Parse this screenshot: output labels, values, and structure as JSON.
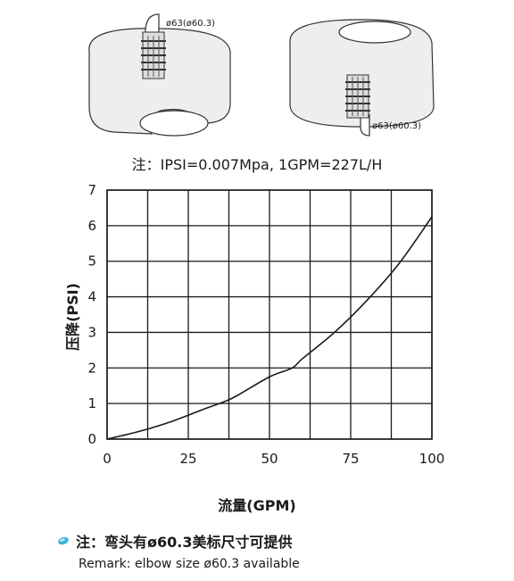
{
  "note": "注：IPSI=0.007Mpa, 1GPM=227L/H",
  "fitting_labels": {
    "left": "ø63(ø60.3)",
    "right": "ø63(ø60.3)"
  },
  "chart_data": {
    "type": "line",
    "title": "",
    "xlabel": "流量(GPM)",
    "ylabel": "压降(PSI)",
    "xlim": [
      0,
      100
    ],
    "ylim": [
      0,
      7
    ],
    "x_ticks": [
      0,
      25,
      50,
      75,
      100
    ],
    "y_ticks": [
      0,
      1,
      2,
      3,
      4,
      5,
      6,
      7
    ],
    "grid": true,
    "x_grid": [
      0,
      12.5,
      25,
      37.5,
      50,
      62.5,
      75,
      87.5,
      100
    ],
    "y_grid": [
      0,
      1,
      2,
      3,
      4,
      5,
      6,
      7
    ],
    "series": [
      {
        "x": [
          0,
          10,
          20,
          30,
          36,
          40,
          50,
          57,
          60,
          70,
          80,
          90,
          100
        ],
        "y": [
          0,
          0.22,
          0.5,
          0.85,
          1.05,
          1.22,
          1.75,
          2.0,
          2.25,
          3.0,
          3.9,
          4.95,
          6.25
        ]
      }
    ],
    "line_color": "#1a1a1a"
  },
  "remark": {
    "chinese": "注：弯头有ø60.3美标尺寸可提供",
    "english": "Remark: elbow size ø60.3 available"
  },
  "colors": {
    "bullet": "#3fb4d9",
    "tank_fill": "#eeeeee"
  }
}
